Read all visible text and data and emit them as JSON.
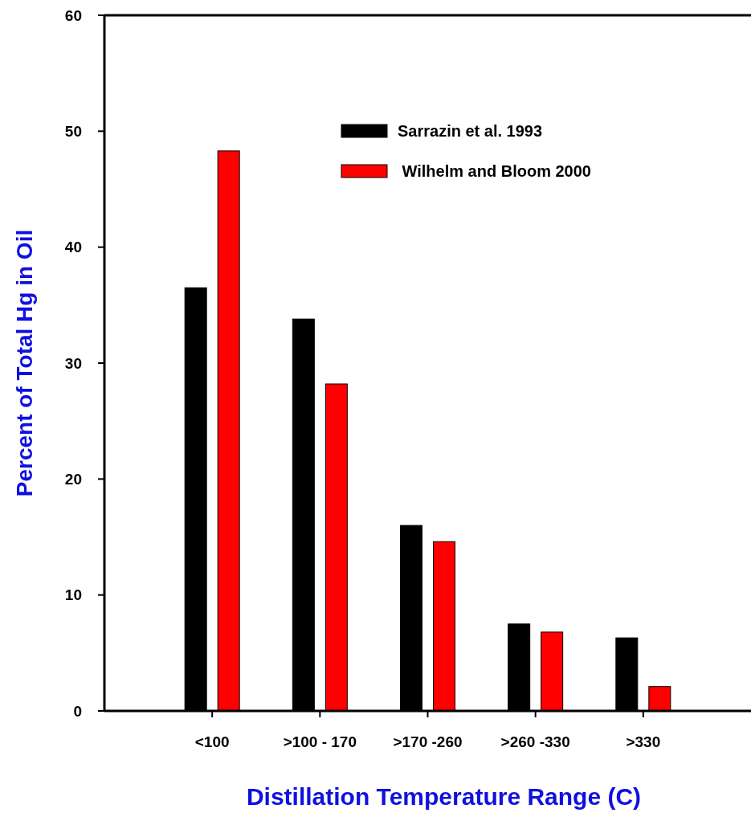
{
  "chart_data": {
    "type": "bar",
    "xlabel": "Distillation Temperature Range (C)",
    "ylabel": "Percent of Total Hg in Oil",
    "categories": [
      "<100",
      ">100 - 170",
      ">170 -260",
      ">260 -330",
      ">330"
    ],
    "series": [
      {
        "name": "Sarrazin et al. 1993",
        "color": "#000000",
        "values": [
          36.5,
          33.8,
          16.0,
          7.5,
          6.3
        ]
      },
      {
        "name": " Wilhelm and Bloom 2000",
        "color": "#ff0000",
        "values": [
          48.3,
          28.2,
          14.6,
          6.8,
          2.1
        ]
      }
    ],
    "ylim": [
      0,
      60
    ],
    "yticks": [
      0,
      10,
      20,
      30,
      40,
      50,
      60
    ],
    "grid": false,
    "legend": "top"
  }
}
